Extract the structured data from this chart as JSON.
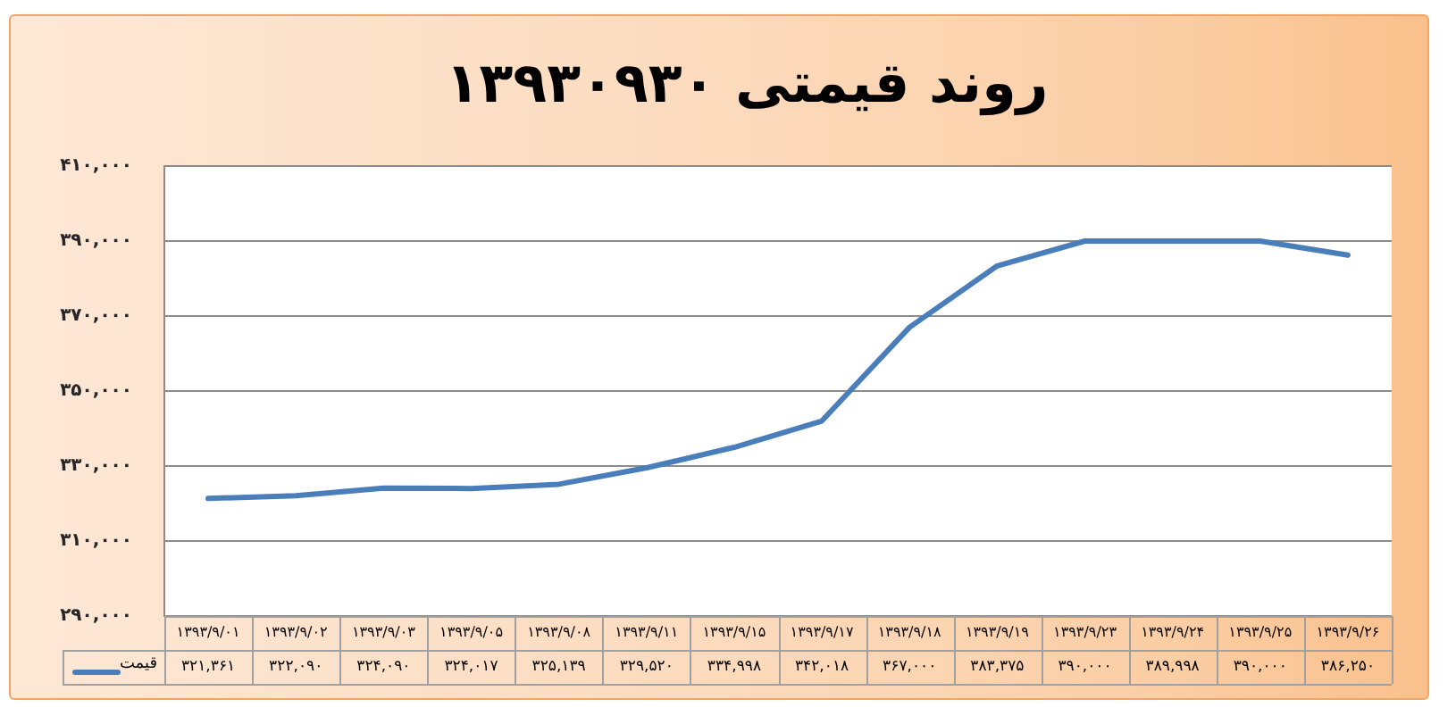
{
  "chart_data": {
    "type": "line",
    "title": "روند قیمتی ۱۳۹۳۰۹۳۰",
    "categories": [
      "۱۳۹۳/۹/۰۱",
      "۱۳۹۳/۹/۰۲",
      "۱۳۹۳/۹/۰۳",
      "۱۳۹۳/۹/۰۵",
      "۱۳۹۳/۹/۰۸",
      "۱۳۹۳/۹/۱۱",
      "۱۳۹۳/۹/۱۵",
      "۱۳۹۳/۹/۱۷",
      "۱۳۹۳/۹/۱۸",
      "۱۳۹۳/۹/۱۹",
      "۱۳۹۳/۹/۲۳",
      "۱۳۹۳/۹/۲۴",
      "۱۳۹۳/۹/۲۵",
      "۱۳۹۳/۹/۲۶"
    ],
    "series": [
      {
        "name": "قیمت",
        "color": "#4a7ebb",
        "values": [
          321361,
          322090,
          324090,
          324017,
          325139,
          329520,
          334998,
          342018,
          367000,
          383375,
          390000,
          389998,
          390000,
          386250
        ],
        "value_labels": [
          "۳۲۱,۳۶۱",
          "۳۲۲,۰۹۰",
          "۳۲۴,۰۹۰",
          "۳۲۴,۰۱۷",
          "۳۲۵,۱۳۹",
          "۳۲۹,۵۲۰",
          "۳۳۴,۹۹۸",
          "۳۴۲,۰۱۸",
          "۳۶۷,۰۰۰",
          "۳۸۳,۳۷۵",
          "۳۹۰,۰۰۰",
          "۳۸۹,۹۹۸",
          "۳۹۰,۰۰۰",
          "۳۸۶,۲۵۰"
        ]
      }
    ],
    "ylim": [
      290000,
      410000
    ],
    "yticks": [
      {
        "value": 290000,
        "label": "۲۹۰,۰۰۰"
      },
      {
        "value": 310000,
        "label": "۳۱۰,۰۰۰"
      },
      {
        "value": 330000,
        "label": "۳۳۰,۰۰۰"
      },
      {
        "value": 350000,
        "label": "۳۵۰,۰۰۰"
      },
      {
        "value": 370000,
        "label": "۳۷۰,۰۰۰"
      },
      {
        "value": 390000,
        "label": "۳۹۰,۰۰۰"
      },
      {
        "value": 410000,
        "label": "۴۱۰,۰۰۰"
      }
    ],
    "grid": "y",
    "legend": "bottom",
    "marker": "none",
    "line_style": "solid"
  }
}
